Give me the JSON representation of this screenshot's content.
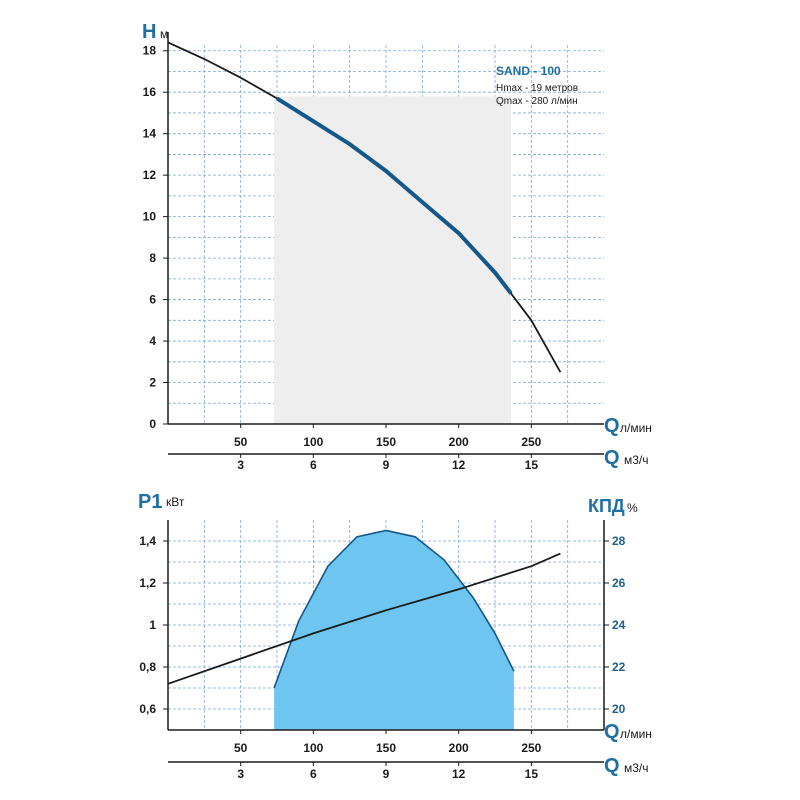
{
  "model": {
    "title": "SAND - 100",
    "hmax": "Hmax - 19 метров",
    "qmax": "Qmax - 280 л/мин"
  },
  "colors": {
    "axis_label": "#1f6fa3",
    "curve_black": "#1a1a1a",
    "curve_blue": "#14578a",
    "working_range_fill": "#eeeeee",
    "efficiency_fill": "#6ec6f0",
    "grid": "#7da8d6"
  },
  "chart_data": [
    {
      "type": "line",
      "title": "",
      "ylabel_symbol": "H",
      "ylabel_unit": "м",
      "xlabel_symbol": "Q",
      "xlabel_unit": "л/мин",
      "x2label_symbol": "Q",
      "x2label_unit": "м3/ч",
      "xlim": [
        0,
        300
      ],
      "ylim": [
        0,
        19
      ],
      "x_ticks": [
        {
          "value": 50,
          "label": "50"
        },
        {
          "value": 100,
          "label": "100"
        },
        {
          "value": 150,
          "label": "150"
        },
        {
          "value": 200,
          "label": "200"
        },
        {
          "value": 250,
          "label": "250"
        }
      ],
      "x2_ticks": [
        {
          "value": 50,
          "label": "3"
        },
        {
          "value": 100,
          "label": "6"
        },
        {
          "value": 150,
          "label": "9"
        },
        {
          "value": 200,
          "label": "12"
        },
        {
          "value": 250,
          "label": "15"
        }
      ],
      "y_ticks": [
        {
          "value": 0,
          "label": "0"
        },
        {
          "value": 2,
          "label": "2"
        },
        {
          "value": 4,
          "label": "4"
        },
        {
          "value": 6,
          "label": "6"
        },
        {
          "value": 8,
          "label": "8"
        },
        {
          "value": 10,
          "label": "10"
        },
        {
          "value": 12,
          "label": "12"
        },
        {
          "value": 14,
          "label": "14"
        },
        {
          "value": 16,
          "label": "16"
        },
        {
          "value": 18,
          "label": "18"
        }
      ],
      "working_range": [
        73,
        236
      ],
      "series": [
        {
          "x": [
            0,
            25,
            50,
            75,
            100,
            125,
            150,
            175,
            200,
            225,
            236,
            250,
            270
          ],
          "y": [
            18.4,
            17.6,
            16.7,
            15.7,
            14.6,
            13.5,
            12.2,
            10.7,
            9.2,
            7.3,
            6.3,
            5.0,
            2.5
          ]
        }
      ],
      "grid": true
    },
    {
      "type": "area",
      "title": "",
      "ylabel_symbol": "P1",
      "ylabel_unit": "кВт",
      "y2label_symbol": "КПД",
      "y2label_unit": "%",
      "xlabel_symbol": "Q",
      "xlabel_unit": "л/мин",
      "x2label_symbol": "Q",
      "x2label_unit": "м3/ч",
      "xlim": [
        0,
        300
      ],
      "ylim": [
        0.5,
        1.5
      ],
      "y2lim": [
        19,
        29
      ],
      "x_ticks": [
        {
          "value": 50,
          "label": "50"
        },
        {
          "value": 100,
          "label": "100"
        },
        {
          "value": 150,
          "label": "150"
        },
        {
          "value": 200,
          "label": "200"
        },
        {
          "value": 250,
          "label": "250"
        }
      ],
      "x2_ticks": [
        {
          "value": 50,
          "label": "3"
        },
        {
          "value": 100,
          "label": "6"
        },
        {
          "value": 150,
          "label": "9"
        },
        {
          "value": 200,
          "label": "12"
        },
        {
          "value": 250,
          "label": "15"
        }
      ],
      "y_ticks": [
        {
          "value": 0.6,
          "label": "0,6"
        },
        {
          "value": 0.8,
          "label": "0,8"
        },
        {
          "value": 1.0,
          "label": "1"
        },
        {
          "value": 1.2,
          "label": "1,2"
        },
        {
          "value": 1.4,
          "label": "1,4"
        }
      ],
      "y2_ticks": [
        {
          "value": 20,
          "label": "20"
        },
        {
          "value": 22,
          "label": "22"
        },
        {
          "value": 24,
          "label": "24"
        },
        {
          "value": 26,
          "label": "26"
        },
        {
          "value": 28,
          "label": "28"
        }
      ],
      "series": [
        {
          "name_key": "P1",
          "x": [
            0,
            50,
            100,
            150,
            200,
            250,
            270
          ],
          "y": [
            0.72,
            0.84,
            0.96,
            1.07,
            1.17,
            1.28,
            1.34
          ]
        },
        {
          "name_key": "КПД",
          "x": [
            73,
            90,
            110,
            130,
            150,
            170,
            190,
            210,
            225,
            238
          ],
          "y": [
            21.0,
            24.2,
            26.8,
            28.2,
            28.5,
            28.2,
            27.1,
            25.3,
            23.6,
            21.8
          ]
        }
      ],
      "grid": true
    }
  ]
}
